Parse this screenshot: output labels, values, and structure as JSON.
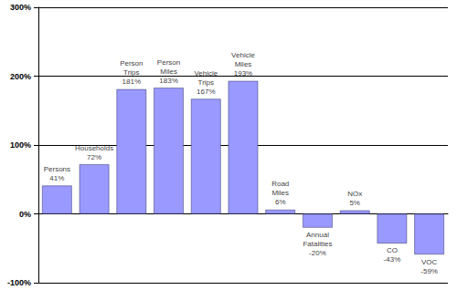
{
  "chart_data": {
    "type": "bar",
    "categories": [
      "Persons",
      "Households",
      "Person Trips",
      "Person Miles",
      "Vehicle Trips",
      "Vehicle Miles",
      "Road Miles",
      "Annual Fatalities",
      "NOx",
      "CO",
      "VOC"
    ],
    "values": [
      41,
      72,
      181,
      183,
      167,
      193,
      6,
      -20,
      5,
      -43,
      -59
    ],
    "value_labels": [
      "41%",
      "72%",
      "181%",
      "183%",
      "167%",
      "193%",
      "6%",
      "-20%",
      "5%",
      "-43%",
      "-59%"
    ],
    "color": "#9999ff",
    "ylim": [
      -100,
      300
    ],
    "yticks": [
      {
        "value": -100,
        "label": "-100%"
      },
      {
        "value": 0,
        "label": "0%"
      },
      {
        "value": 100,
        "label": "100%"
      },
      {
        "value": 200,
        "label": "200%"
      },
      {
        "value": 300,
        "label": "300%"
      }
    ],
    "grid": true,
    "data_labels": true,
    "tick_labels": "y"
  }
}
